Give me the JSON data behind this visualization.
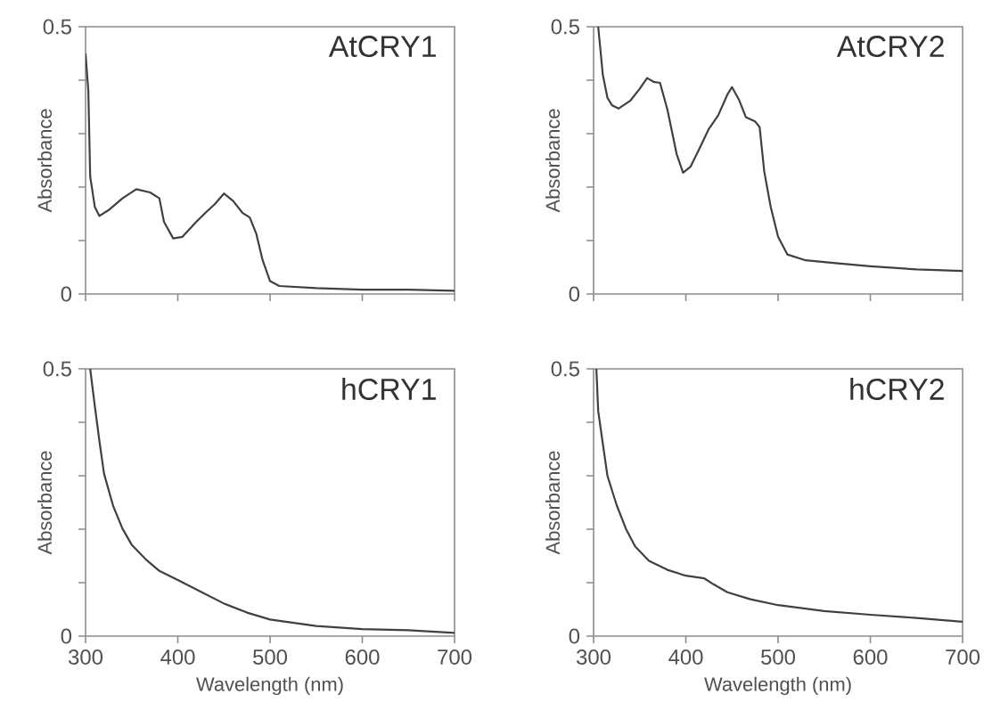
{
  "chart_data": [
    {
      "type": "line",
      "title": "AtCRY1",
      "ylabel": "Absorbance",
      "color": "#404040",
      "tick_labels": "y",
      "x": [
        300,
        303,
        305,
        310,
        315,
        325,
        340,
        355,
        370,
        380,
        385,
        395,
        405,
        420,
        430,
        440,
        450,
        460,
        470,
        478,
        485,
        492,
        500,
        510,
        550,
        600,
        650,
        700
      ],
      "values": [
        0.45,
        0.38,
        0.22,
        0.163,
        0.146,
        0.157,
        0.179,
        0.196,
        0.19,
        0.179,
        0.135,
        0.104,
        0.107,
        0.135,
        0.152,
        0.168,
        0.188,
        0.174,
        0.152,
        0.143,
        0.113,
        0.063,
        0.024,
        0.015,
        0.011,
        0.008,
        0.008,
        0.006
      ],
      "xlim": [
        300,
        700
      ],
      "ylim": [
        0,
        0.5
      ],
      "xticks": [
        300,
        400,
        500,
        600,
        700
      ],
      "yticks": [
        0,
        {
          "value": 0.1,
          "label": null
        },
        {
          "value": 0.2,
          "label": null
        },
        {
          "value": 0.3,
          "label": null
        },
        {
          "value": 0.4,
          "label": null
        },
        0.5
      ]
    },
    {
      "type": "line",
      "title": "AtCRY2",
      "ylabel": "Absorbance",
      "color": "#404040",
      "tick_labels": "y",
      "x": [
        305,
        310,
        315,
        320,
        327,
        340,
        350,
        358,
        365,
        372,
        380,
        390,
        397,
        405,
        415,
        425,
        435,
        445,
        450,
        458,
        465,
        475,
        480,
        485,
        492,
        500,
        510,
        530,
        560,
        600,
        650,
        700
      ],
      "values": [
        0.5,
        0.41,
        0.367,
        0.353,
        0.347,
        0.362,
        0.384,
        0.404,
        0.397,
        0.395,
        0.345,
        0.262,
        0.227,
        0.238,
        0.273,
        0.309,
        0.334,
        0.373,
        0.387,
        0.362,
        0.331,
        0.323,
        0.312,
        0.229,
        0.163,
        0.107,
        0.074,
        0.063,
        0.058,
        0.052,
        0.046,
        0.043
      ],
      "xlim": [
        300,
        700
      ],
      "ylim": [
        0,
        0.5
      ],
      "xticks": [
        300,
        400,
        500,
        600,
        700
      ],
      "yticks": [
        0,
        {
          "value": 0.1,
          "label": null
        },
        {
          "value": 0.2,
          "label": null
        },
        {
          "value": 0.3,
          "label": null
        },
        {
          "value": 0.4,
          "label": null
        },
        0.5
      ]
    },
    {
      "type": "line",
      "title": "hCRY1",
      "ylabel": "Absorbance",
      "xlabel": "Wavelength (nm)",
      "color": "#404040",
      "x": [
        305,
        310,
        315,
        320,
        330,
        340,
        350,
        365,
        380,
        400,
        425,
        450,
        475,
        500,
        550,
        600,
        650,
        700
      ],
      "values": [
        0.5,
        0.431,
        0.365,
        0.304,
        0.243,
        0.201,
        0.171,
        0.144,
        0.122,
        0.105,
        0.083,
        0.061,
        0.044,
        0.031,
        0.019,
        0.013,
        0.011,
        0.006
      ],
      "xlim": [
        300,
        700
      ],
      "ylim": [
        0,
        0.5
      ],
      "xticks": [
        300,
        400,
        500,
        600,
        700
      ],
      "yticks": [
        0,
        {
          "value": 0.1,
          "label": null
        },
        {
          "value": 0.2,
          "label": null
        },
        {
          "value": 0.3,
          "label": null
        },
        {
          "value": 0.4,
          "label": null
        },
        0.5
      ]
    },
    {
      "type": "line",
      "title": "hCRY2",
      "ylabel": "Absorbance",
      "xlabel": "Wavelength (nm)",
      "color": "#404040",
      "x": [
        303,
        305,
        310,
        315,
        325,
        335,
        345,
        360,
        380,
        400,
        420,
        430,
        445,
        470,
        500,
        550,
        600,
        650,
        700
      ],
      "values": [
        0.5,
        0.421,
        0.36,
        0.3,
        0.245,
        0.201,
        0.168,
        0.141,
        0.124,
        0.113,
        0.108,
        0.097,
        0.082,
        0.069,
        0.058,
        0.047,
        0.04,
        0.034,
        0.027
      ],
      "xlim": [
        300,
        700
      ],
      "ylim": [
        0,
        0.5
      ],
      "xticks": [
        300,
        400,
        500,
        600,
        700
      ],
      "yticks": [
        0,
        {
          "value": 0.1,
          "label": null
        },
        {
          "value": 0.2,
          "label": null
        },
        {
          "value": 0.3,
          "label": null
        },
        {
          "value": 0.4,
          "label": null
        },
        0.5
      ]
    }
  ]
}
